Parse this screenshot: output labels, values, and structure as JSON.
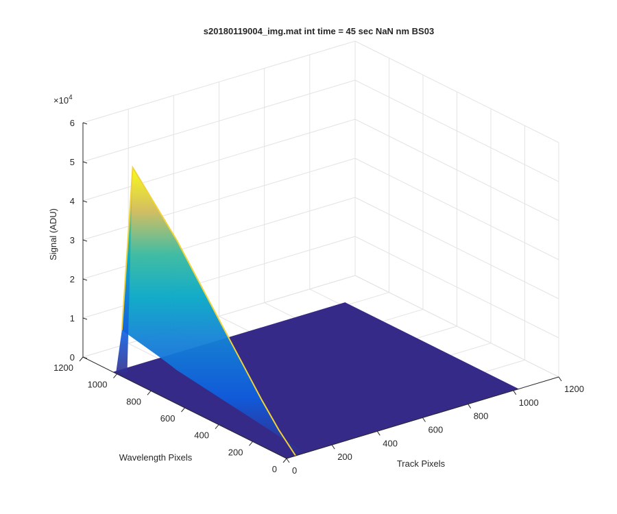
{
  "chart_data": {
    "type": "surface",
    "title": "s20180119004_img.mat int time = 45 sec   NaN nm BS03",
    "xlabel": "Track Pixels",
    "ylabel": "Wavelength Pixels",
    "zlabel": "Signal (ADU)",
    "z_exponent_label": "×10",
    "z_exponent_power": "4",
    "xlim": [
      0,
      1200
    ],
    "ylim": [
      0,
      1200
    ],
    "zlim": [
      0,
      60000
    ],
    "x_ticks": [
      "0",
      "200",
      "400",
      "600",
      "800",
      "1000",
      "1200"
    ],
    "y_ticks": [
      "0",
      "200",
      "400",
      "600",
      "800",
      "1000",
      "1200"
    ],
    "z_ticks": [
      "0",
      "1",
      "2",
      "3",
      "4",
      "5",
      "6"
    ],
    "grid": true,
    "colormap": "parula",
    "floor_color": "#352a87",
    "ridge": {
      "track_pixel": 40,
      "peak_signal": 53000,
      "profile_wavelength": [
        1024,
        960,
        900,
        800,
        700,
        600,
        500,
        400,
        300,
        200,
        100,
        0
      ],
      "profile_signal": [
        10000,
        53000,
        50000,
        45000,
        40000,
        34000,
        28000,
        22000,
        16000,
        10000,
        4500,
        0
      ]
    }
  }
}
